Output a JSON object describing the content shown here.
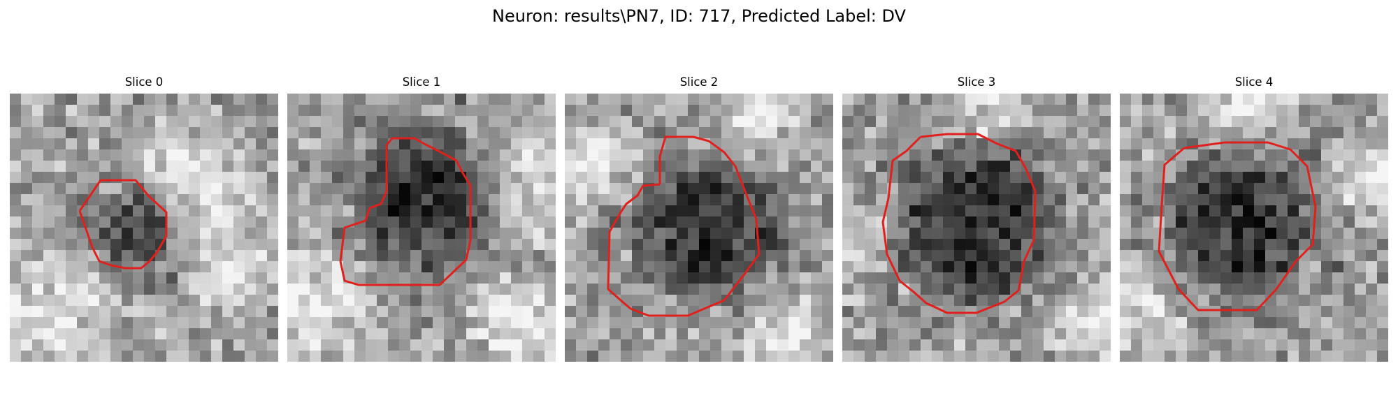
{
  "figure": {
    "title": "Neuron: results\\PN7, ID: 717, Predicted Label: DV",
    "slices": [
      {
        "title": "Slice 0"
      },
      {
        "title": "Slice 1"
      },
      {
        "title": "Slice 2"
      },
      {
        "title": "Slice 3"
      },
      {
        "title": "Slice 4"
      }
    ],
    "colors": {
      "contour": "#e0201c",
      "background": "#ffffff"
    }
  }
}
